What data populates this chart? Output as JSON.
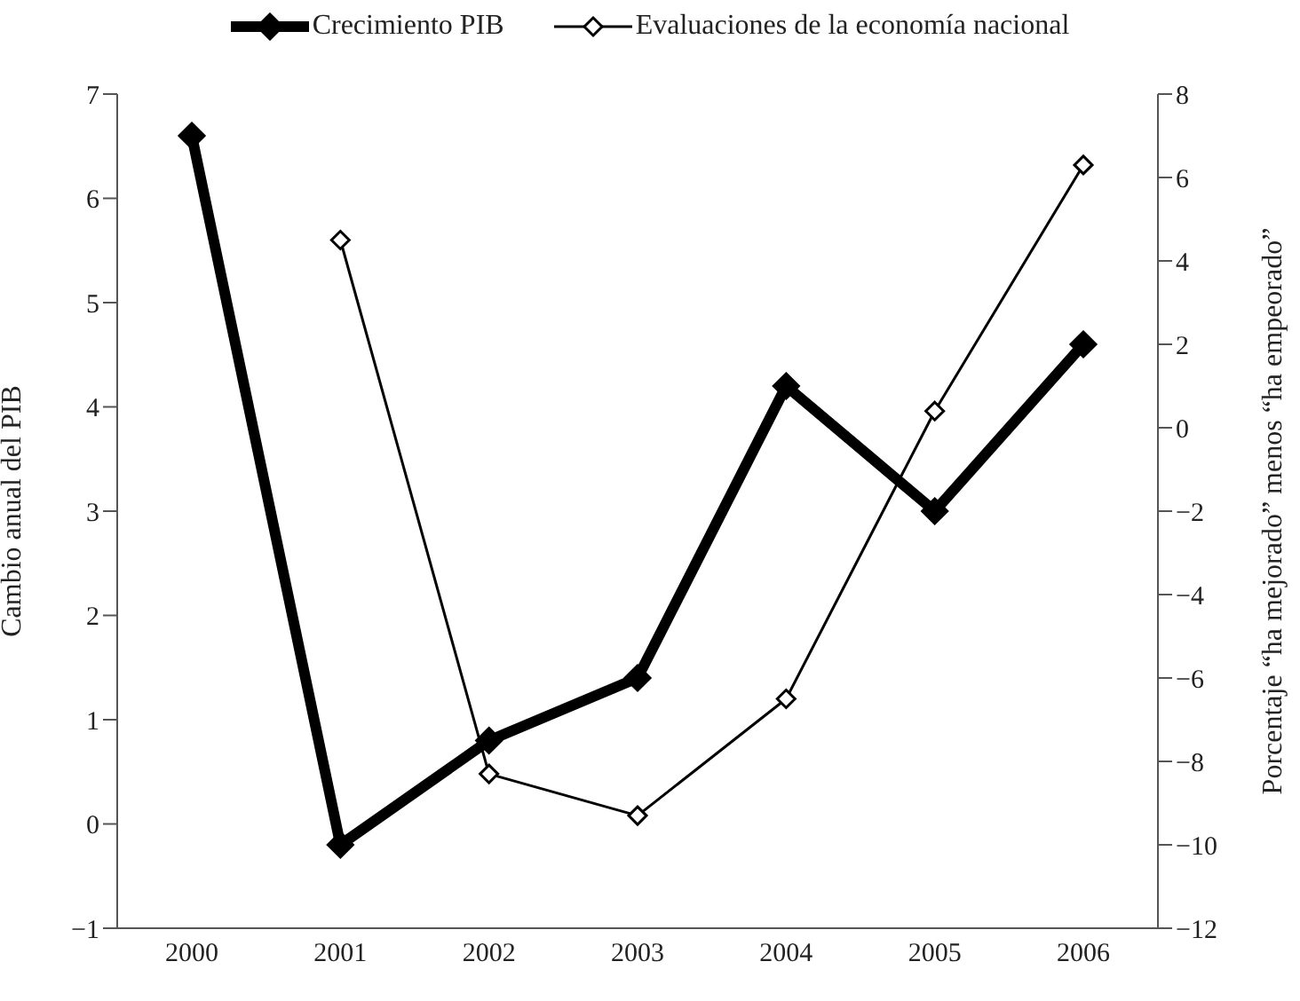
{
  "chart_data": {
    "type": "line",
    "categories": [
      "2000",
      "2001",
      "2002",
      "2003",
      "2004",
      "2005",
      "2006"
    ],
    "series": [
      {
        "name": "Crecimiento PIB",
        "color": "#000000",
        "values": [
          6.6,
          -0.2,
          0.8,
          1.4,
          4.2,
          3.0,
          4.6
        ]
      },
      {
        "name": "Evaluaciones de la economía nacional",
        "color": "#000000",
        "axis": "y2",
        "values": [
          null,
          4.5,
          -8.3,
          -9.3,
          -6.5,
          0.4,
          6.3
        ]
      }
    ],
    "ylabel": "Cambio anual del PIB",
    "y2label": "Porcentaje “ha mejorado” menos “ha empeorado”",
    "ylim": [
      -1,
      7
    ],
    "yticks": [
      -1,
      0,
      1,
      2,
      3,
      4,
      5,
      6,
      7
    ],
    "y2lim": [
      -12,
      8
    ],
    "y2ticks": [
      -12,
      -10,
      -8,
      -6,
      -4,
      -2,
      0,
      2,
      4,
      6,
      8
    ],
    "legend": "top",
    "marker": "diamond",
    "line_style": "solid",
    "grid": false
  }
}
